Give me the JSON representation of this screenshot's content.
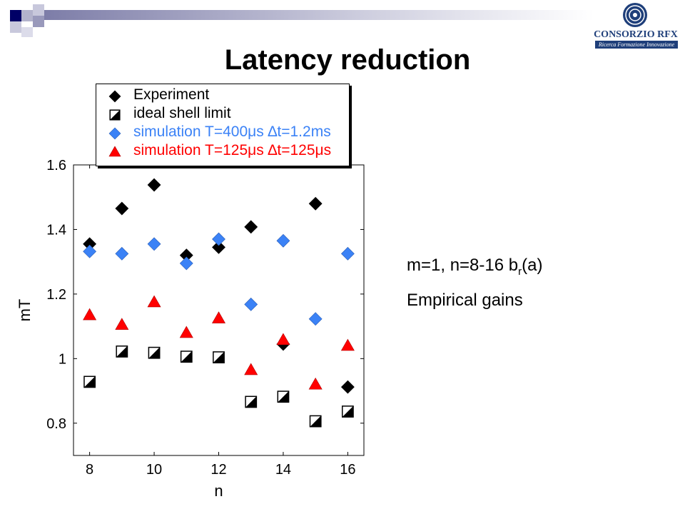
{
  "slide": {
    "title": "Latency reduction",
    "logo": {
      "name": "CONSORZIO RFX",
      "tagline": "Ricerca Formazione Innovazione"
    },
    "side_text": {
      "line1_prefix": "m=1, n=8-16  b",
      "line1_sub": "r",
      "line1_suffix": "(a)",
      "line2": "Empirical gains"
    }
  },
  "chart_data": {
    "type": "scatter",
    "title": "",
    "xlabel": "n",
    "ylabel": "mT",
    "xlim": [
      7.5,
      16.5
    ],
    "ylim": [
      0.7,
      1.6
    ],
    "xticks": [
      "8",
      "10",
      "12",
      "14",
      "16"
    ],
    "yticks": [
      "0.8",
      "1",
      "1.2",
      "1.4",
      "1.6"
    ],
    "grid": false,
    "legend_position": "top",
    "series": [
      {
        "name": "Experiment",
        "marker": "diamond",
        "color": "#000000",
        "x": [
          8,
          9,
          10,
          11,
          12,
          13,
          14,
          15,
          16
        ],
        "y": [
          1.355,
          1.465,
          1.538,
          1.32,
          1.345,
          1.408,
          1.045,
          1.48,
          0.912
        ]
      },
      {
        "name": "ideal shell limit",
        "marker": "half-square",
        "color": "#000000",
        "x": [
          8,
          9,
          10,
          11,
          12,
          13,
          14,
          15,
          16
        ],
        "y": [
          0.928,
          1.022,
          1.018,
          1.006,
          1.004,
          0.866,
          0.882,
          0.806,
          0.836
        ]
      },
      {
        "name": "simulation T=400μs ∆t=1.2ms",
        "marker": "diamond",
        "color": "#3b82f6",
        "x": [
          8,
          9,
          10,
          11,
          12,
          13,
          14,
          15,
          16
        ],
        "y": [
          1.332,
          1.325,
          1.355,
          1.295,
          1.37,
          1.168,
          1.365,
          1.123,
          1.325
        ]
      },
      {
        "name": "simulation T=125μs ∆t=125μs",
        "marker": "triangle",
        "color": "#ff0000",
        "x": [
          8,
          9,
          10,
          11,
          12,
          13,
          14,
          15,
          16
        ],
        "y": [
          1.135,
          1.105,
          1.175,
          1.08,
          1.125,
          0.965,
          1.058,
          0.92,
          1.04
        ]
      }
    ]
  }
}
